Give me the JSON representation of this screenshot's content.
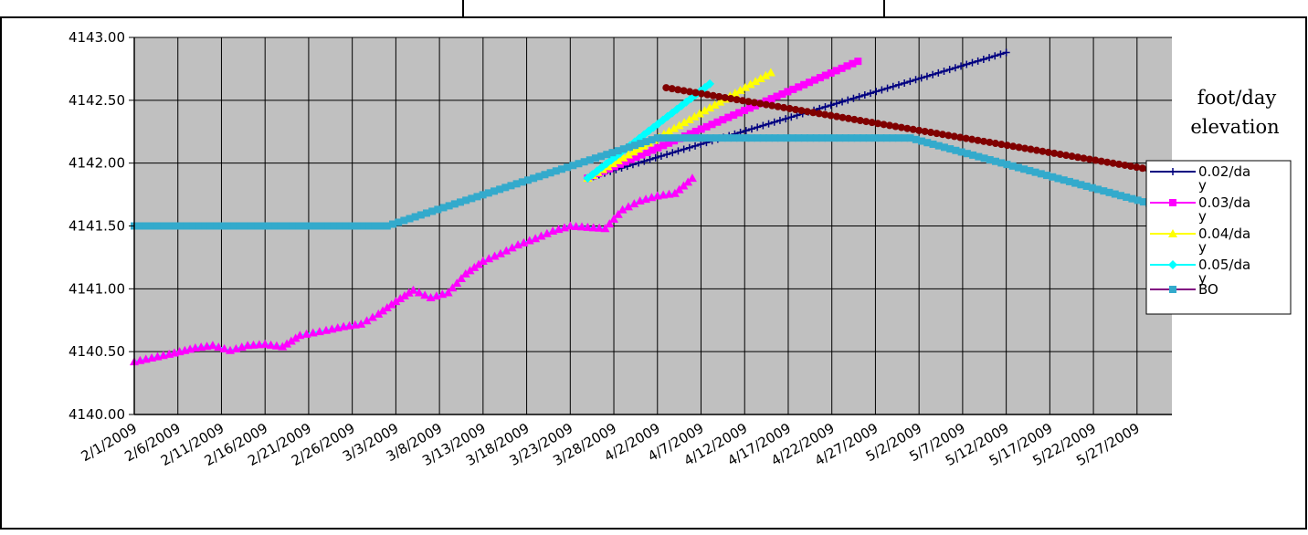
{
  "chart_data": {
    "type": "line",
    "title": "",
    "xlabel": "",
    "ylabel": "",
    "ylim": [
      4140.0,
      4143.0
    ],
    "y_ticks": [
      "4143.00",
      "4142.50",
      "4142.00",
      "4141.50",
      "4141.00",
      "4140.50",
      "4140.00"
    ],
    "x_start": "2009-02-01",
    "x_end": "2009-05-31",
    "x_ticks": [
      "2/1/2009",
      "2/6/2009",
      "2/11/2009",
      "2/16/2009",
      "2/21/2009",
      "2/26/2009",
      "3/3/2009",
      "3/8/2009",
      "3/13/2009",
      "3/18/2009",
      "3/23/2009",
      "3/28/2009",
      "4/2/2009",
      "4/7/2009",
      "4/12/2009",
      "4/17/2009",
      "4/22/2009",
      "4/27/2009",
      "5/2/2009",
      "5/7/2009",
      "5/12/2009",
      "5/17/2009",
      "5/22/2009",
      "5/27/2009"
    ],
    "grid": true,
    "plot_background": "#c0c0c0",
    "legend_position": "right",
    "annotation_lines": [
      "foot/day",
      "elevation"
    ],
    "series": [
      {
        "name": "0.02/da\ny",
        "color": "#000080",
        "marker": "plus",
        "points": [
          [
            "2009-03-25",
            4141.88
          ],
          [
            "2009-05-12",
            4142.88
          ]
        ]
      },
      {
        "name": "0.03/da\ny",
        "color": "#ff00ff",
        "marker": "square",
        "points": [
          [
            "2009-03-25",
            4141.88
          ],
          [
            "2009-04-25",
            4142.81
          ]
        ]
      },
      {
        "name": "0.04/da\ny",
        "color": "#ffff00",
        "marker": "triangle",
        "points": [
          [
            "2009-03-25",
            4141.88
          ],
          [
            "2009-04-15",
            4142.72
          ]
        ]
      },
      {
        "name": "0.05/da\ny",
        "color": "#00ffff",
        "marker": "diamond",
        "points": [
          [
            "2009-03-25",
            4141.88
          ],
          [
            "2009-04-08",
            4142.63
          ]
        ]
      },
      {
        "name": "BO",
        "color": "#33aacc",
        "marker": "square",
        "line_color": "#800080",
        "points": [
          [
            "2009-02-01",
            4141.5
          ],
          [
            "2009-03-02",
            4141.5
          ],
          [
            "2009-04-02",
            4142.2
          ],
          [
            "2009-05-01",
            4142.2
          ],
          [
            "2009-05-31",
            4141.63
          ]
        ]
      },
      {
        "name": "",
        "color": "#800000",
        "marker": "circle",
        "points": [
          [
            "2009-04-03",
            4142.6
          ],
          [
            "2009-05-31",
            4141.92
          ]
        ]
      },
      {
        "name": "",
        "color": "#00ffff",
        "marker": "triangle",
        "marker_color": "#ff00ff",
        "points": [
          [
            "2009-02-01",
            4140.42
          ],
          [
            "2009-02-05",
            4140.48
          ],
          [
            "2009-02-08",
            4140.53
          ],
          [
            "2009-02-10",
            4140.55
          ],
          [
            "2009-02-12",
            4140.51
          ],
          [
            "2009-02-14",
            4140.55
          ],
          [
            "2009-02-16",
            4140.56
          ],
          [
            "2009-02-18",
            4140.54
          ],
          [
            "2009-02-20",
            4140.63
          ],
          [
            "2009-02-23",
            4140.67
          ],
          [
            "2009-02-25",
            4140.7
          ],
          [
            "2009-02-27",
            4140.72
          ],
          [
            "2009-03-01",
            4140.8
          ],
          [
            "2009-03-03",
            4140.9
          ],
          [
            "2009-03-05",
            4140.99
          ],
          [
            "2009-03-07",
            4140.93
          ],
          [
            "2009-03-09",
            4140.97
          ],
          [
            "2009-03-11",
            4141.12
          ],
          [
            "2009-03-13",
            4141.22
          ],
          [
            "2009-03-15",
            4141.28
          ],
          [
            "2009-03-17",
            4141.35
          ],
          [
            "2009-03-19",
            4141.4
          ],
          [
            "2009-03-21",
            4141.46
          ],
          [
            "2009-03-23",
            4141.5
          ],
          [
            "2009-03-25",
            4141.49
          ],
          [
            "2009-03-27",
            4141.48
          ],
          [
            "2009-03-29",
            4141.63
          ],
          [
            "2009-03-31",
            4141.7
          ],
          [
            "2009-04-02",
            4141.74
          ],
          [
            "2009-04-04",
            4141.76
          ],
          [
            "2009-04-06",
            4141.88
          ]
        ]
      }
    ]
  }
}
